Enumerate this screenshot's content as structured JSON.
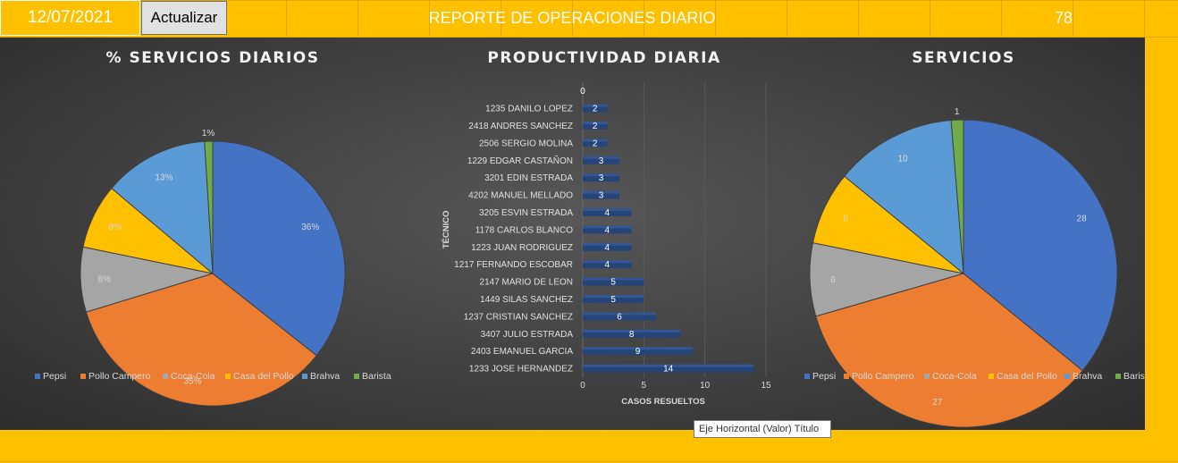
{
  "header": {
    "date": "12/07/2021",
    "refresh_label": "Actualizar",
    "title": "REPORTE DE OPERACIONES DIARIO",
    "count": "78"
  },
  "tooltip": "Eje Horizontal (Valor)  Título",
  "colors": {
    "Pepsi": "#4472c4",
    "Pollo Campero": "#ed7d31",
    "Coca-Cola": "#a5a5a5",
    "Casa del Pollo": "#ffc000",
    "Brahva": "#5b9bd5",
    "Barista": "#70ad47",
    "bar": "#264478"
  },
  "chart_data": [
    {
      "type": "pie",
      "title": "% SERVICIOS DIARIOS",
      "labels": [
        "Pepsi",
        "Pollo Campero",
        "Coca-Cola",
        "Casa del Pollo",
        "Brahva",
        "Barista"
      ],
      "values": [
        36,
        35,
        8,
        8,
        13,
        1
      ],
      "data_labels": [
        "36%",
        "35%",
        "8%",
        "8%",
        "13%",
        "1%"
      ],
      "legend": "bottom"
    },
    {
      "type": "bar",
      "orientation": "horizontal",
      "title": "PRODUCTIVIDAD DIARIA",
      "xlabel": "CASOS RESUELTOS",
      "ylabel": "TÉCNICO",
      "xlim": [
        0,
        15
      ],
      "xticks": [
        "0",
        "5",
        "10",
        "15"
      ],
      "grid": true,
      "categories": [
        "",
        "1235 DANILO LOPEZ",
        "2418 ANDRES SANCHEZ",
        "2506 SERGIO MOLINA",
        "1229 EDGAR CASTAÑON",
        "3201 EDIN ESTRADA",
        "4202 MANUEL MELLADO",
        "3205 ESVIN ESTRADA",
        "1178 CARLOS BLANCO",
        "1223 JUAN RODRIGUEZ",
        "1217 FERNANDO ESCOBAR",
        "2147 MARIO DE LEON",
        "1449 SILAS SANCHEZ",
        "1237 CRISTIAN SANCHEZ",
        "3407 JULIO ESTRADA",
        "2403 EMANUEL GARCIA",
        "1233 JOSE HERNANDEZ"
      ],
      "values": [
        0,
        2,
        2,
        2,
        3,
        3,
        3,
        4,
        4,
        4,
        4,
        5,
        5,
        6,
        8,
        9,
        14
      ],
      "data_labels": [
        "0",
        "2",
        "2",
        "2",
        "3",
        "3",
        "3",
        "4",
        "4",
        "4",
        "4",
        "5",
        "5",
        "6",
        "8",
        "9",
        "14"
      ]
    },
    {
      "type": "pie",
      "title": "SERVICIOS",
      "labels": [
        "Pepsi",
        "Pollo Campero",
        "Coca-Cola",
        "Casa del Pollo",
        "Brahva",
        "Barista"
      ],
      "values": [
        28,
        27,
        6,
        6,
        10,
        1
      ],
      "data_labels": [
        "28",
        "27",
        "6",
        "6",
        "10",
        "1"
      ],
      "legend": "bottom"
    }
  ]
}
